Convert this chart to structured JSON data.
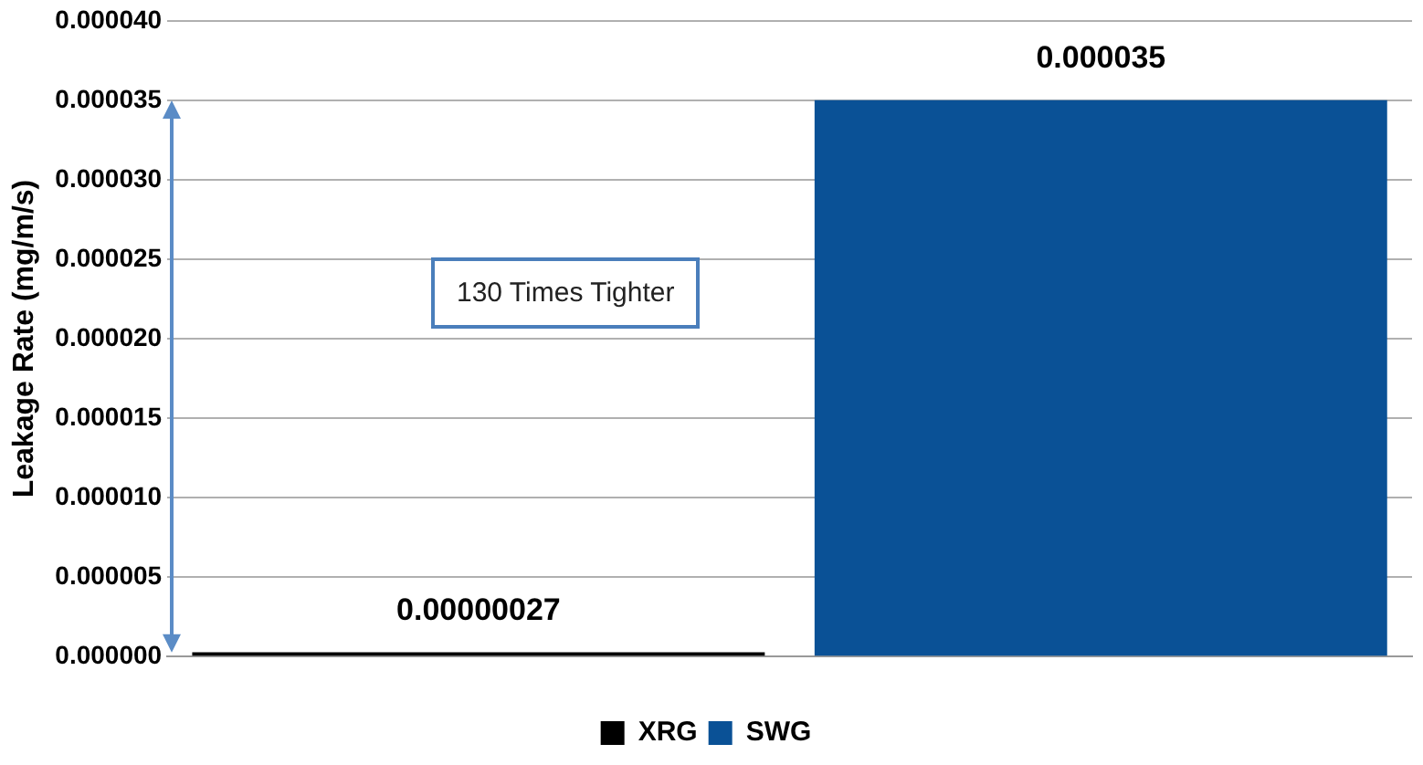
{
  "chart_data": {
    "type": "bar",
    "ylabel": "Leakage Rate (mg/m/s)",
    "categories": [
      null,
      null
    ],
    "series": [
      {
        "name": "XRG",
        "color": "#000000",
        "values": [
          2.7e-07,
          null
        ],
        "value_labels": [
          "0.00000027",
          null
        ]
      },
      {
        "name": "SWG",
        "color": "#0a5196",
        "values": [
          null,
          3.5e-05
        ],
        "value_labels": [
          null,
          "0.000035"
        ]
      }
    ],
    "ylim": [
      0,
      4e-05
    ],
    "yticks": [
      {
        "value": 0,
        "label": "0.000000"
      },
      {
        "value": 5e-06,
        "label": "0.000005"
      },
      {
        "value": 1e-05,
        "label": "0.000010"
      },
      {
        "value": 1.5e-05,
        "label": "0.000015"
      },
      {
        "value": 2e-05,
        "label": "0.000020"
      },
      {
        "value": 2.5e-05,
        "label": "0.000025"
      },
      {
        "value": 3e-05,
        "label": "0.000030"
      },
      {
        "value": 3.5e-05,
        "label": "0.000035"
      },
      {
        "value": 4e-05,
        "label": "0.000040"
      }
    ],
    "grid": "y",
    "legend": "bottom",
    "annotations": [
      "130 Times Tighter"
    ]
  }
}
